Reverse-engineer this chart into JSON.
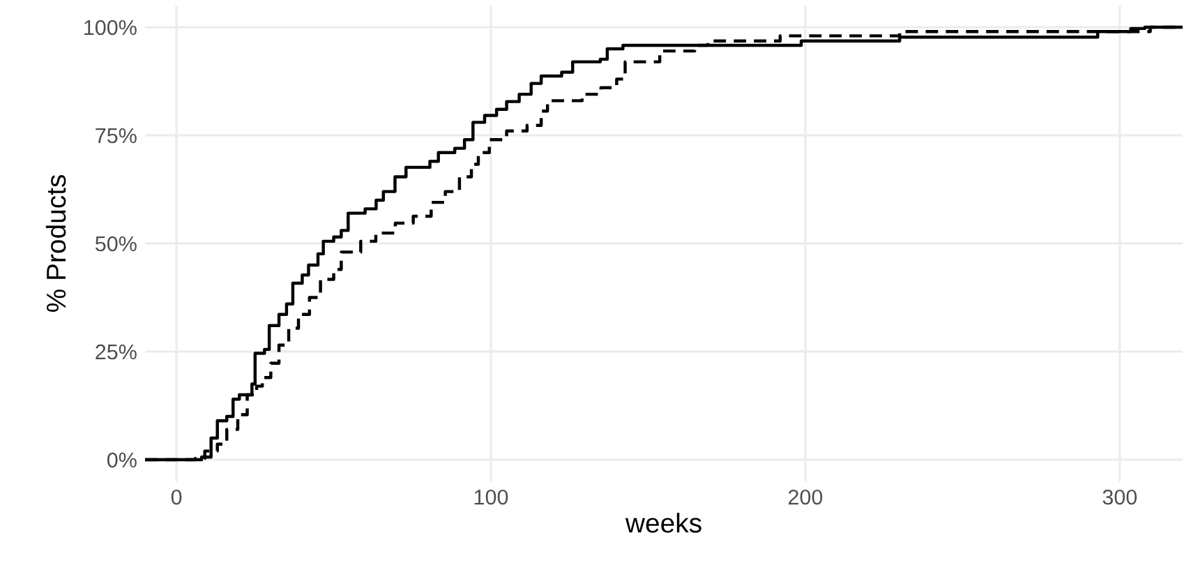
{
  "chart_data": {
    "type": "step",
    "xlabel": "weeks",
    "ylabel": "% Products",
    "xlim": [
      -10,
      320
    ],
    "ylim": [
      -5,
      105
    ],
    "xticks": [
      0,
      100,
      200,
      300
    ],
    "yticks": [
      {
        "value": 0,
        "label": "0%"
      },
      {
        "value": 25,
        "label": "25%"
      },
      {
        "value": 50,
        "label": "50%"
      },
      {
        "value": 75,
        "label": "75%"
      },
      {
        "value": 100,
        "label": "100%"
      }
    ],
    "grid": true,
    "series": [
      {
        "color": "#000000",
        "line_style": "solid",
        "x": [
          -10,
          5.5,
          8,
          11,
          13,
          16,
          18,
          20,
          24,
          25,
          28,
          29.5,
          32.6,
          35,
          37,
          40,
          42,
          45,
          46.7,
          50,
          52.4,
          54.6,
          60,
          63.5,
          65.8,
          69.5,
          73,
          80.6,
          83.3,
          88.5,
          91.6,
          94.3,
          98,
          101.8,
          105,
          109,
          112.8,
          116,
          122.5,
          126,
          134.8,
          137,
          142,
          198.7,
          230,
          293,
          303.5,
          308,
          320
        ],
        "values": [
          0,
          0,
          0.6,
          5,
          9,
          10,
          14,
          15,
          17.5,
          24.6,
          25.5,
          31,
          33.6,
          36,
          40.8,
          42.7,
          45,
          47.6,
          50.5,
          51.5,
          53,
          57,
          58,
          60,
          62,
          65.4,
          67.6,
          69,
          71,
          72,
          74,
          78,
          79.6,
          81,
          82.8,
          84.5,
          87,
          88.7,
          89.6,
          92,
          92.6,
          95,
          95.8,
          96.8,
          97.7,
          99,
          99.7,
          100,
          100
        ]
      },
      {
        "color": "#000000",
        "line_style": "dashed",
        "x": [
          -10,
          6,
          9,
          13,
          16,
          19.5,
          22.5,
          25.5,
          27.3,
          30,
          32.6,
          35.7,
          38.8,
          42.3,
          45.8,
          50,
          52.4,
          58.6,
          63.4,
          69.6,
          75.3,
          81,
          85.5,
          90,
          93.8,
          96,
          99.5,
          105,
          111.5,
          116,
          118,
          129,
          135,
          140,
          142.7,
          153.7,
          164.8,
          169,
          192,
          230,
          309.7,
          320
        ],
        "values": [
          0,
          0.3,
          2,
          3.6,
          7,
          10.4,
          15,
          17,
          19,
          22.3,
          26.5,
          30.4,
          33.6,
          37.5,
          41.7,
          44,
          48,
          50.5,
          52.4,
          54.7,
          56.3,
          59.5,
          62,
          65.4,
          68.3,
          71,
          74,
          76,
          77.3,
          80.6,
          83,
          84.5,
          86,
          88,
          92,
          94.5,
          95.8,
          96.8,
          98,
          99,
          100,
          100
        ]
      }
    ]
  }
}
